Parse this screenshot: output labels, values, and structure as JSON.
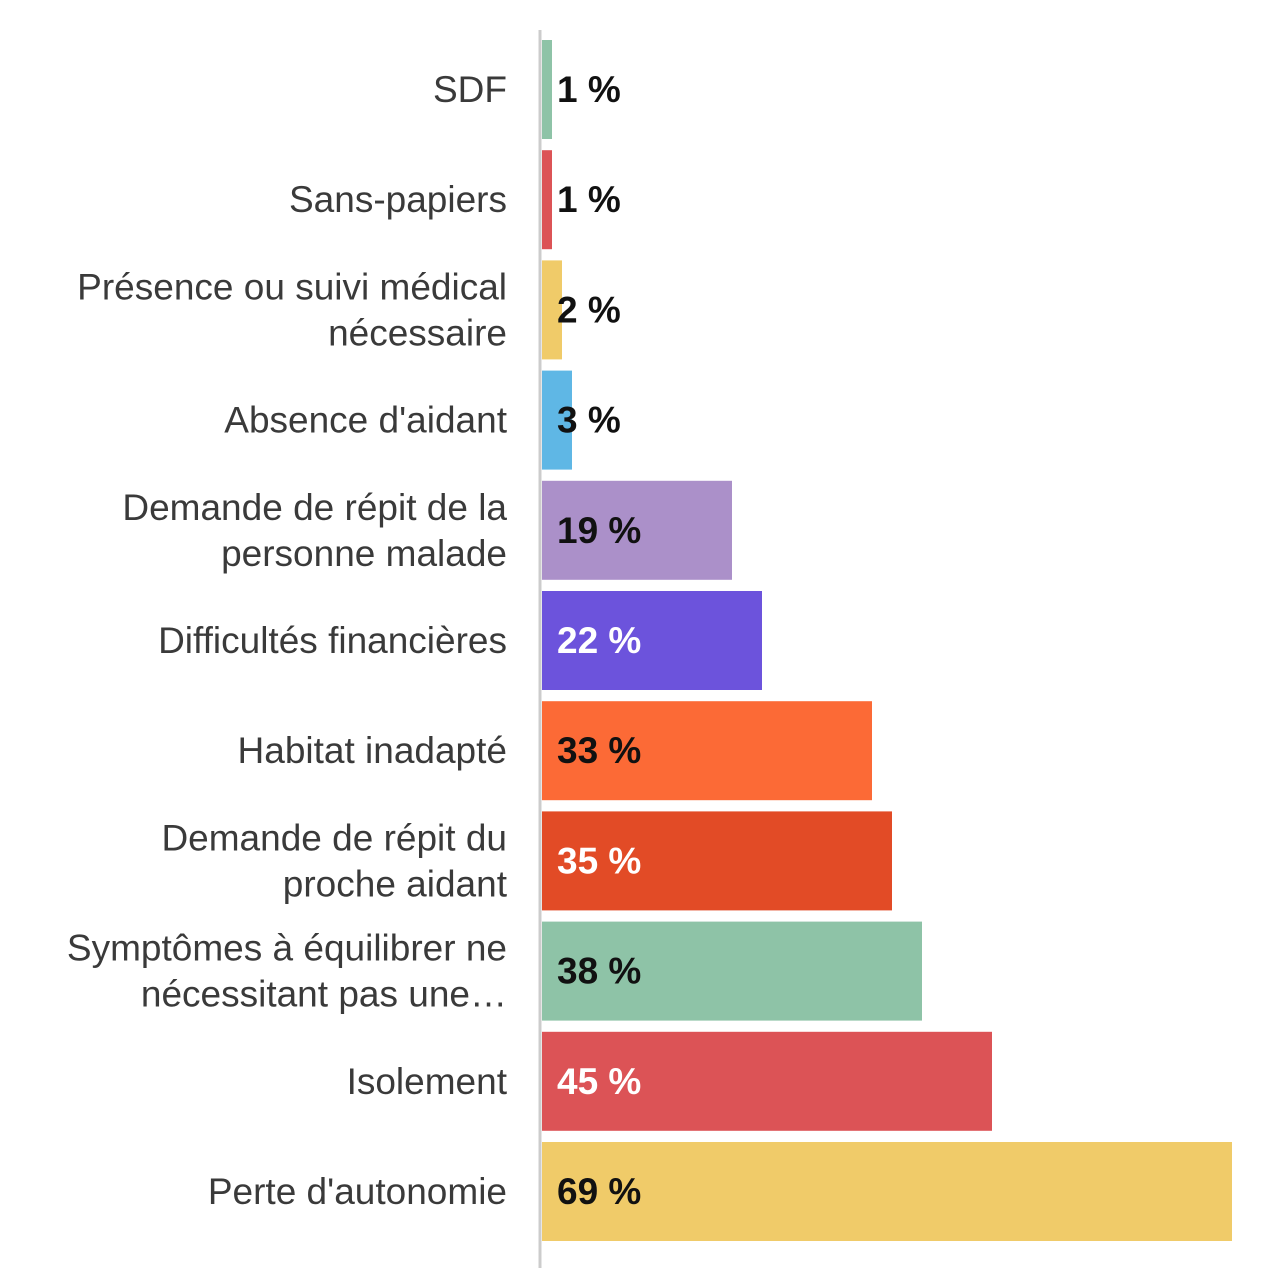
{
  "chart_data": {
    "type": "bar",
    "orientation": "horizontal",
    "title": "",
    "xlabel": "",
    "ylabel": "",
    "xlim": [
      0,
      69
    ],
    "grid": false,
    "categories": [
      [
        "SDF"
      ],
      [
        "Sans-papiers"
      ],
      [
        "Présence ou suivi médical",
        "nécessaire"
      ],
      [
        "Absence d'aidant"
      ],
      [
        "Demande de répit de la",
        "personne malade"
      ],
      [
        "Difficultés financières"
      ],
      [
        "Habitat inadapté"
      ],
      [
        "Demande de répit du",
        "proche aidant"
      ],
      [
        "Symptômes à équilibrer ne",
        "nécessitant pas une…"
      ],
      [
        "Isolement"
      ],
      [
        "Perte d'autonomie"
      ]
    ],
    "values": [
      1,
      1,
      2,
      3,
      19,
      22,
      33,
      35,
      38,
      45,
      69
    ],
    "value_labels": [
      "1 %",
      "1 %",
      "2 %",
      "3 %",
      "19 %",
      "22 %",
      "33 %",
      "35 %",
      "38 %",
      "45 %",
      "69 %"
    ],
    "colors": [
      "#8ec3a7",
      "#dc5356",
      "#f0cb69",
      "#5fb7e5",
      "#ab90c9",
      "#6c53dc",
      "#fc6a36",
      "#e24b26",
      "#8ec3a7",
      "#dc5356",
      "#f0cb69"
    ],
    "label_colors": [
      "#111111",
      "#111111",
      "#111111",
      "#111111",
      "#111111",
      "#ffffff",
      "#111111",
      "#ffffff",
      "#111111",
      "#ffffff",
      "#111111"
    ],
    "axis_color": "#cccccc"
  }
}
